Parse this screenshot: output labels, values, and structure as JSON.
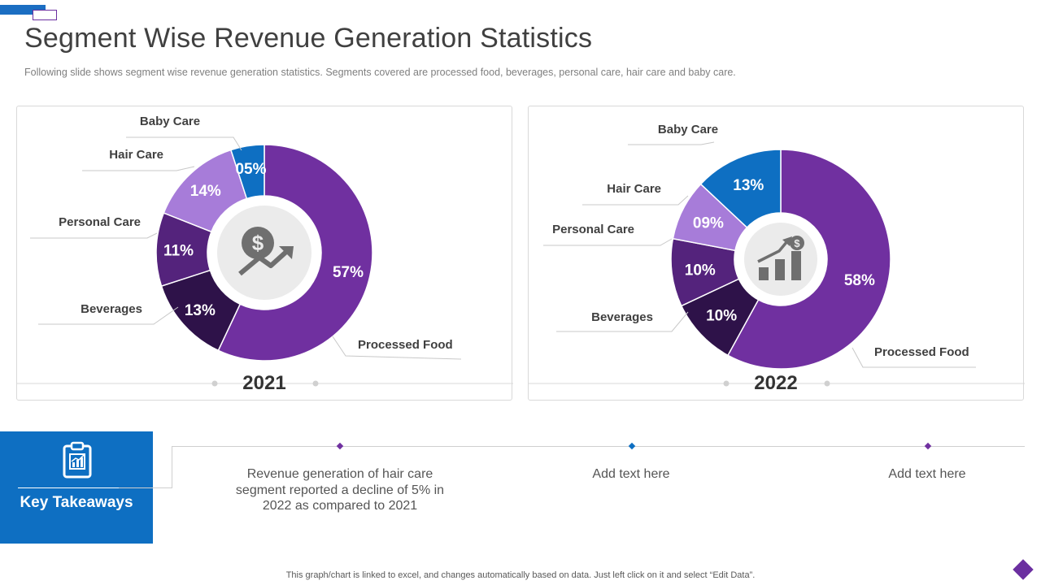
{
  "slide": {
    "title": "Segment Wise Revenue Generation Statistics",
    "subtitle": "Following slide shows segment wise revenue  generation  statistics. Segments covered  are processed food, beverages,  personal care, hair care and baby care.",
    "footer": "This graph/chart is linked to excel,  and changes automatically based on data. Just left click on it and select “Edit Data”."
  },
  "chart_data": [
    {
      "type": "pie",
      "title": "2021",
      "categories": [
        "Processed Food",
        "Beverages",
        "Personal Care",
        "Hair Care",
        "Baby Care"
      ],
      "values": [
        57,
        13,
        11,
        14,
        5
      ],
      "value_labels": [
        "57%",
        "13%",
        "11%",
        "14%",
        "05%"
      ],
      "colors": [
        "#7030a0",
        "#2e1249",
        "#54237c",
        "#a77cd9",
        "#0e6fc2"
      ],
      "center_icon": "dollar-growth-icon"
    },
    {
      "type": "pie",
      "title": "2022",
      "categories": [
        "Processed Food",
        "Beverages",
        "Personal Care",
        "Hair Care",
        "Baby Care"
      ],
      "values": [
        58,
        10,
        10,
        9,
        13
      ],
      "value_labels": [
        "58%",
        "10%",
        "10%",
        "09%",
        "13%"
      ],
      "colors": [
        "#7030a0",
        "#2e1249",
        "#54237c",
        "#a77cd9",
        "#0e6fc2"
      ],
      "center_icon": "bar-chart-growth-icon"
    }
  ],
  "takeaways": {
    "label": "Key Takeaways",
    "icon": "clipboard-chart-icon",
    "items": [
      {
        "text": "Revenue generation of hair care segment reported a decline of 5% in 2022 as compared to 2021",
        "marker_color": "#7030a0"
      },
      {
        "text": "Add text here",
        "marker_color": "#0e6fc2"
      },
      {
        "text": "Add text here",
        "marker_color": "#7030a0"
      }
    ]
  }
}
